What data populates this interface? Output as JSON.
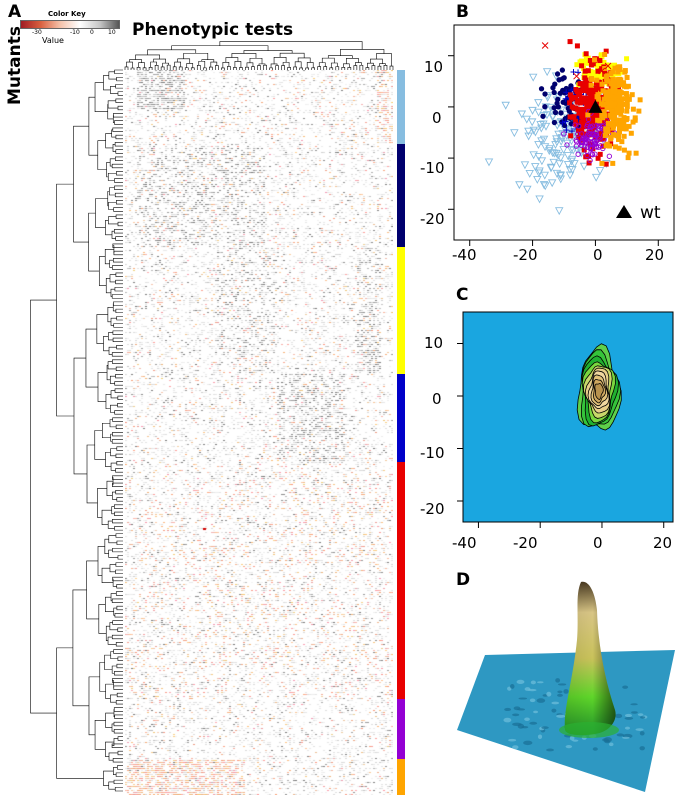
{
  "panel_a": {
    "letter": "A",
    "color_key": {
      "title": "Color Key",
      "value_label": "Value",
      "ticks": [
        "-30",
        "-10",
        "0",
        "10"
      ],
      "gradient": [
        "#a01c24",
        "#d9603f",
        "#f5c2aa",
        "#ffffff",
        "#c8c8c8",
        "#555555"
      ]
    },
    "col_title": "Phenotypic tests",
    "row_title": "Mutants",
    "cluster_bar": [
      {
        "color": "#87bde0",
        "fraction": 0.102
      },
      {
        "color": "#00006e",
        "fraction": 0.142
      },
      {
        "color": "#ffff00",
        "fraction": 0.175
      },
      {
        "color": "#0000c8",
        "fraction": 0.122
      },
      {
        "color": "#e80000",
        "fraction": 0.327
      },
      {
        "color": "#9400d3",
        "fraction": 0.082
      },
      {
        "color": "#ffa500",
        "fraction": 0.05
      }
    ]
  },
  "panel_b": {
    "letter": "B",
    "x_ticks": [
      "-40",
      "-20",
      "0",
      "20"
    ],
    "y_ticks": [
      "10",
      "0",
      "-10",
      "-20"
    ],
    "legend_label": "wt",
    "chart_data": {
      "type": "scatter",
      "xlim": [
        -45,
        25
      ],
      "ylim": [
        -26,
        16
      ],
      "clusters": [
        {
          "color": "#87bde0",
          "marker": "triangle-down",
          "center": [
            -12,
            -6
          ],
          "spread": [
            7,
            5
          ]
        },
        {
          "color": "#00006e",
          "marker": "circle",
          "center": [
            -9,
            2
          ],
          "spread": [
            3,
            3
          ]
        },
        {
          "color": "#ffff00",
          "marker": "square",
          "center": [
            0,
            7
          ],
          "spread": [
            3,
            2
          ]
        },
        {
          "color": "#0000c8",
          "marker": "plus",
          "center": [
            -5,
            0
          ],
          "spread": [
            3,
            3
          ]
        },
        {
          "color": "#e80000",
          "marker": "square",
          "center": [
            -1,
            0
          ],
          "spread": [
            3,
            4
          ]
        },
        {
          "color": "#9400d3",
          "marker": "circle",
          "center": [
            -1,
            -6
          ],
          "spread": [
            3,
            2
          ]
        },
        {
          "color": "#ffa500",
          "marker": "square",
          "center": [
            6,
            0
          ],
          "spread": [
            3,
            4
          ]
        }
      ],
      "wt_point": [
        0,
        0
      ]
    }
  },
  "panel_c": {
    "letter": "C",
    "x_ticks": [
      "-40",
      "-20",
      "0",
      "20"
    ],
    "y_ticks": [
      "10",
      "0",
      "-10",
      "-20"
    ],
    "chart_data": {
      "type": "contour",
      "xlim": [
        -45,
        23
      ],
      "ylim": [
        -24,
        16
      ],
      "background": "#1aa6e0",
      "peak_center": [
        -1,
        1
      ]
    }
  },
  "panel_d": {
    "letter": "D"
  }
}
